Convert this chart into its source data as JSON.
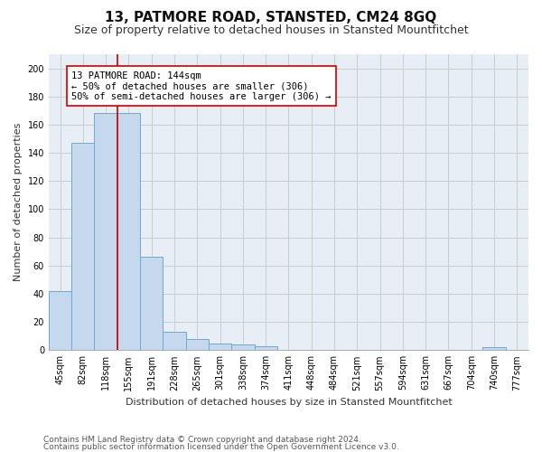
{
  "title1": "13, PATMORE ROAD, STANSTED, CM24 8GQ",
  "title2": "Size of property relative to detached houses in Stansted Mountfitchet",
  "xlabel": "Distribution of detached houses by size in Stansted Mountfitchet",
  "ylabel": "Number of detached properties",
  "categories": [
    "45sqm",
    "82sqm",
    "118sqm",
    "155sqm",
    "191sqm",
    "228sqm",
    "265sqm",
    "301sqm",
    "338sqm",
    "374sqm",
    "411sqm",
    "448sqm",
    "484sqm",
    "521sqm",
    "557sqm",
    "594sqm",
    "631sqm",
    "667sqm",
    "704sqm",
    "740sqm",
    "777sqm"
  ],
  "values": [
    42,
    147,
    168,
    168,
    66,
    13,
    8,
    5,
    4,
    3,
    0,
    0,
    0,
    0,
    0,
    0,
    0,
    0,
    0,
    2,
    0
  ],
  "bar_color": "#c5d8ee",
  "bar_edge_color": "#6baad4",
  "vline_x": 2.5,
  "vline_color": "#cc0000",
  "annotation_text": "13 PATMORE ROAD: 144sqm\n← 50% of detached houses are smaller (306)\n50% of semi-detached houses are larger (306) →",
  "annotation_box_color": "#ffffff",
  "annotation_box_edge": "#cc0000",
  "ylim": [
    0,
    210
  ],
  "yticks": [
    0,
    20,
    40,
    60,
    80,
    100,
    120,
    140,
    160,
    180,
    200
  ],
  "grid_color": "#cccccc",
  "bg_color": "#e8eef5",
  "footer1": "Contains HM Land Registry data © Crown copyright and database right 2024.",
  "footer2": "Contains public sector information licensed under the Open Government Licence v3.0.",
  "title1_fontsize": 11,
  "title2_fontsize": 9,
  "xlabel_fontsize": 8,
  "ylabel_fontsize": 8,
  "tick_fontsize": 7,
  "annotation_fontsize": 7.5,
  "footer_fontsize": 6.5
}
